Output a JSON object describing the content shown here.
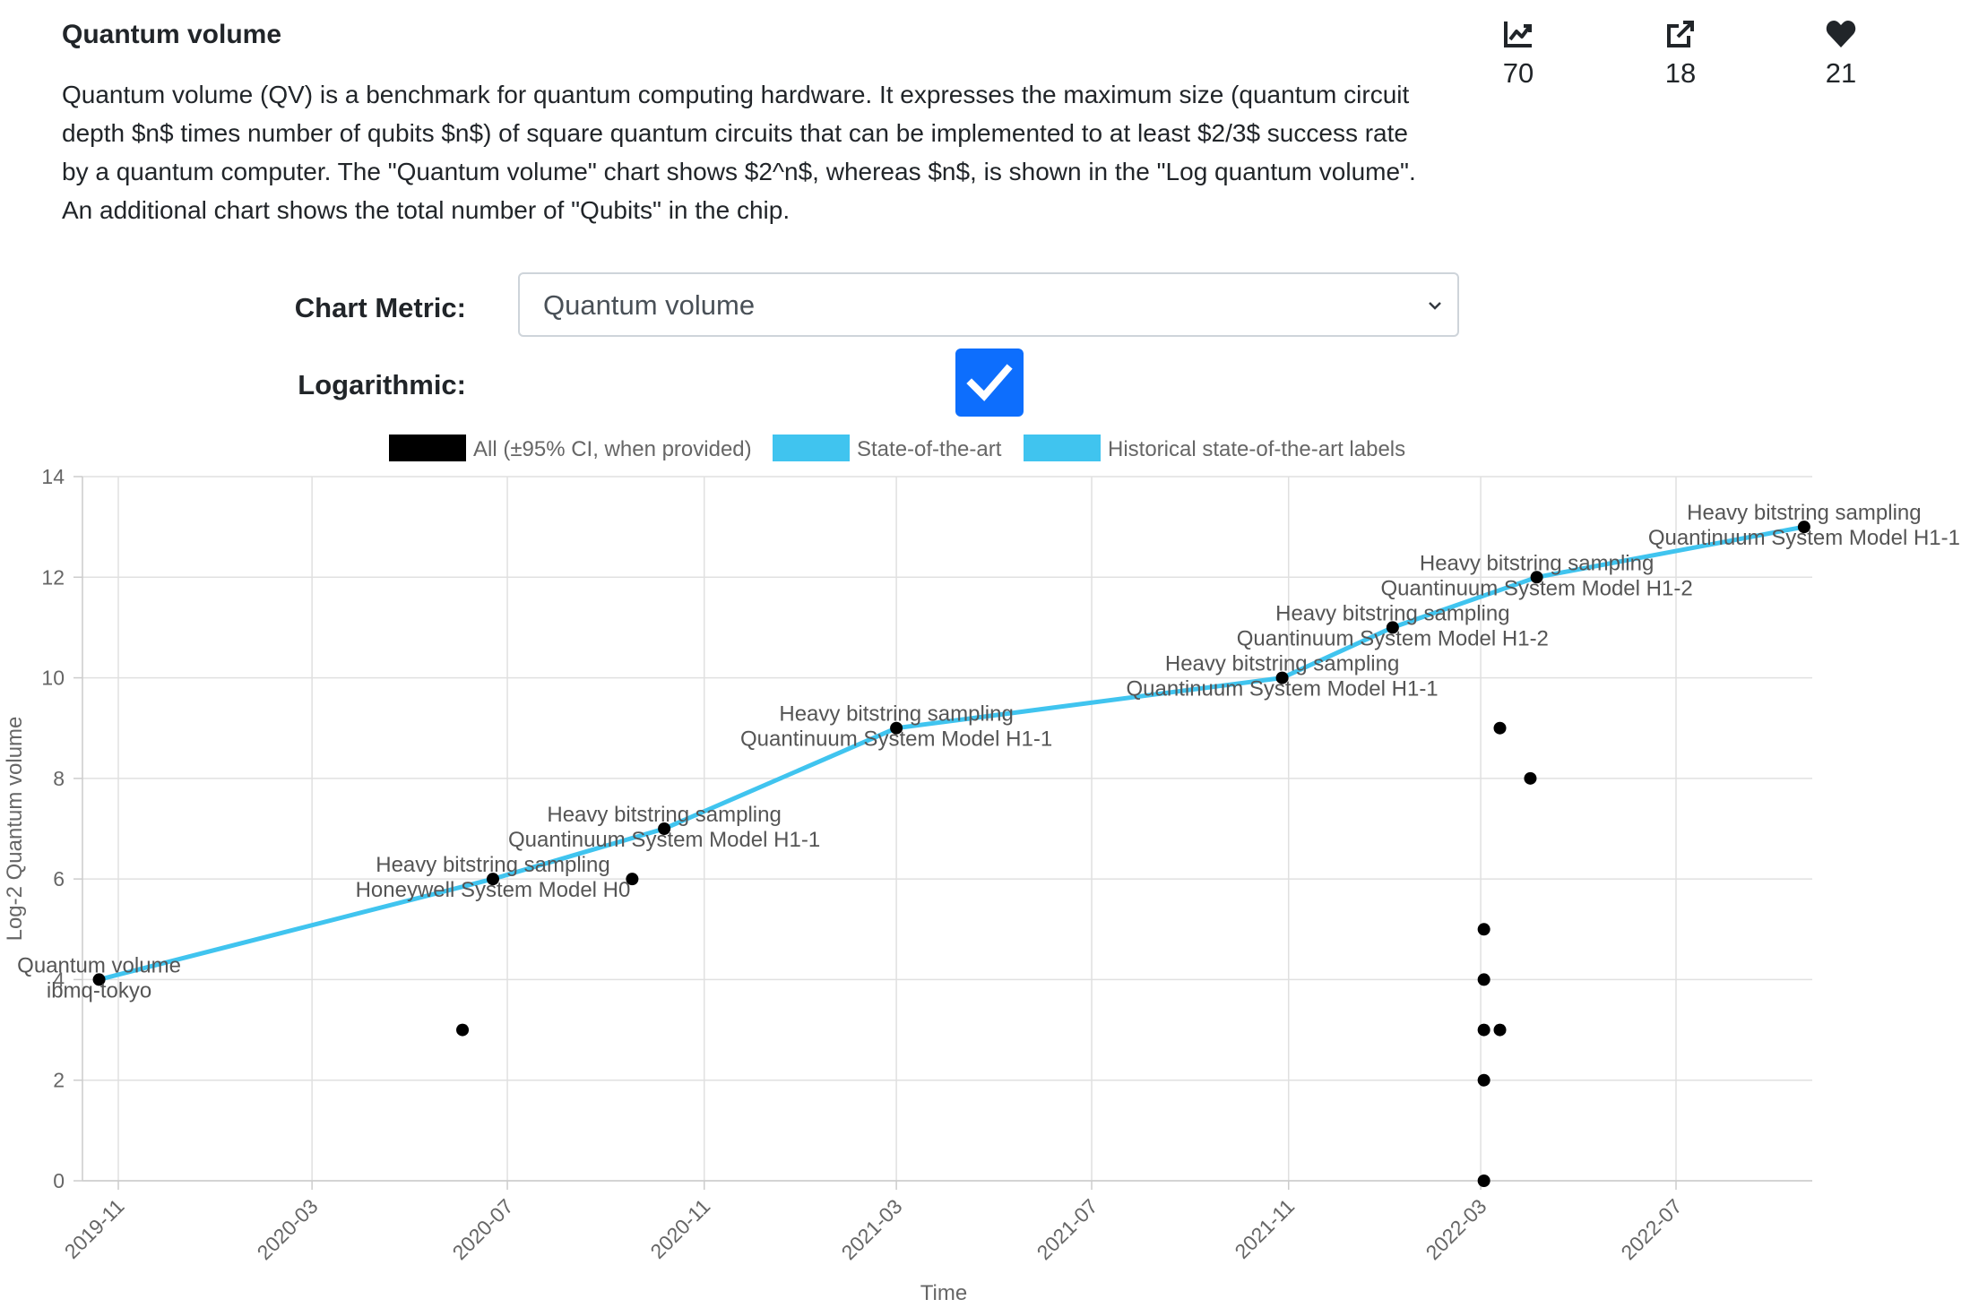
{
  "header": {
    "title": "Quantum volume",
    "description": "Quantum volume (QV) is a benchmark for quantum computing hardware. It expresses the maximum size (quantum circuit depth $n$ times number of qubits $n$) of square quantum circuits that can be implemented to at least $2/3$ success rate by a quantum computer. The \"Quantum volume\" chart shows $2^n$, whereas $n$, is shown in the \"Log quantum volume\". An additional chart shows the total number of \"Qubits\" in the chip."
  },
  "stats": {
    "views": "70",
    "shares": "18",
    "likes": "21",
    "icons": [
      "chart-line-icon",
      "external-link-icon",
      "heart-icon"
    ]
  },
  "controls": {
    "metric_label": "Chart Metric:",
    "metric_value": "Quantum volume",
    "log_label": "Logarithmic:",
    "log_checked": true
  },
  "colors": {
    "accent": "#0d6efd",
    "sota_line": "#40c4ef",
    "points": "#000000"
  },
  "chart_data": {
    "type": "scatter",
    "xlabel": "Time",
    "ylabel": "Log-2 Quantum volume",
    "ylim": [
      0,
      14
    ],
    "yticks": [
      0,
      2,
      4,
      6,
      8,
      10,
      12,
      14
    ],
    "xticks": [
      "2019-11",
      "2020-03",
      "2020-07",
      "2020-11",
      "2021-03",
      "2021-07",
      "2021-11",
      "2022-03",
      "2022-07"
    ],
    "grid": true,
    "legend": [
      {
        "label": "All (±95% CI, when provided)",
        "color": "#000000"
      },
      {
        "label": "State-of-the-art",
        "color": "#40c4ef"
      },
      {
        "label": "Historical state-of-the-art labels",
        "color": "#40c4ef"
      }
    ],
    "series": [
      {
        "name": "All (±95% CI, when provided)",
        "points": [
          {
            "x": "2019-10-20",
            "y": 4
          },
          {
            "x": "2020-06-03",
            "y": 3
          },
          {
            "x": "2020-06-22",
            "y": 6
          },
          {
            "x": "2020-09-17",
            "y": 6
          },
          {
            "x": "2020-10-07",
            "y": 7
          },
          {
            "x": "2021-03-01",
            "y": 9
          },
          {
            "x": "2021-10-28",
            "y": 10
          },
          {
            "x": "2022-01-05",
            "y": 11
          },
          {
            "x": "2022-03-03",
            "y": 0
          },
          {
            "x": "2022-03-03",
            "y": 2
          },
          {
            "x": "2022-03-03",
            "y": 3
          },
          {
            "x": "2022-03-03",
            "y": 4
          },
          {
            "x": "2022-03-03",
            "y": 5
          },
          {
            "x": "2022-03-13",
            "y": 3
          },
          {
            "x": "2022-03-13",
            "y": 9
          },
          {
            "x": "2022-04-01",
            "y": 8
          },
          {
            "x": "2022-04-05",
            "y": 12
          },
          {
            "x": "2022-09-19",
            "y": 13
          }
        ]
      },
      {
        "name": "State-of-the-art",
        "points": [
          {
            "x": "2019-10-20",
            "y": 4
          },
          {
            "x": "2020-06-22",
            "y": 6
          },
          {
            "x": "2020-10-07",
            "y": 7
          },
          {
            "x": "2021-03-01",
            "y": 9
          },
          {
            "x": "2021-10-28",
            "y": 10
          },
          {
            "x": "2022-01-05",
            "y": 11
          },
          {
            "x": "2022-04-05",
            "y": 12
          },
          {
            "x": "2022-09-19",
            "y": 13
          }
        ]
      }
    ],
    "annotations": [
      {
        "x": "2019-10-20",
        "y": 4,
        "line1": "Quantum volume",
        "line2": "ibmq-tokyo"
      },
      {
        "x": "2020-06-22",
        "y": 6,
        "line1": "Heavy bitstring sampling",
        "line2": "Honeywell System Model H0"
      },
      {
        "x": "2020-10-07",
        "y": 7,
        "line1": "Heavy bitstring sampling",
        "line2": "Quantinuum System Model H1-1"
      },
      {
        "x": "2021-03-01",
        "y": 9,
        "line1": "Heavy bitstring sampling",
        "line2": "Quantinuum System Model H1-1"
      },
      {
        "x": "2021-10-28",
        "y": 10,
        "line1": "Heavy bitstring sampling",
        "line2": "Quantinuum System Model H1-1"
      },
      {
        "x": "2022-01-05",
        "y": 11,
        "line1": "Heavy bitstring sampling",
        "line2": "Quantinuum System Model H1-2"
      },
      {
        "x": "2022-04-05",
        "y": 12,
        "line1": "Heavy bitstring sampling",
        "line2": "Quantinuum System Model H1-2"
      },
      {
        "x": "2022-09-19",
        "y": 13,
        "line1": "Heavy bitstring sampling",
        "line2": "Quantinuum System Model H1-1"
      }
    ]
  }
}
